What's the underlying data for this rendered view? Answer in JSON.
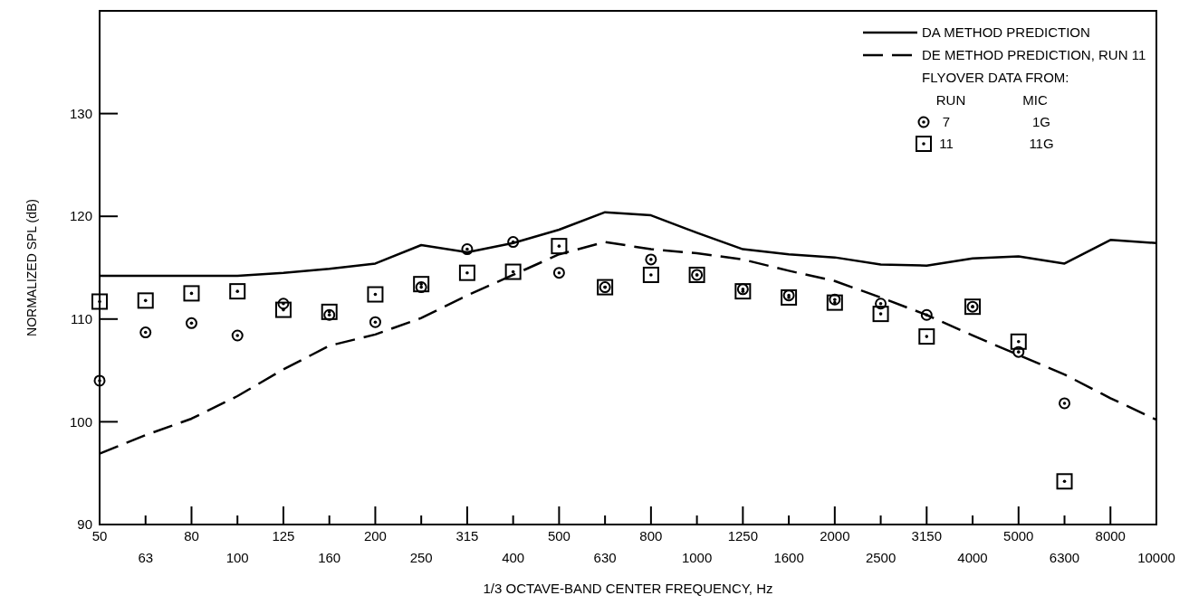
{
  "chart_data": {
    "type": "line",
    "xlabel": "1/3 OCTAVE-BAND CENTER FREQUENCY, Hz",
    "ylabel": "NORMALIZED SPL  (dB)",
    "categories": [
      "50",
      "63",
      "80",
      "100",
      "125",
      "160",
      "200",
      "250",
      "315",
      "400",
      "500",
      "630",
      "800",
      "1000",
      "1250",
      "1600",
      "2000",
      "2500",
      "3150",
      "4000",
      "5000",
      "6300",
      "8000",
      "10000"
    ],
    "ylim": [
      90,
      140
    ],
    "yticks": [
      90,
      100,
      110,
      120,
      130
    ],
    "grid": false,
    "legend": "top right",
    "annotations": [
      "FLYOVER DATA FROM:",
      "RUN",
      "MIC",
      "1G",
      "11G"
    ],
    "series": [
      {
        "name": "DA METHOD PREDICTION",
        "line_style": "solid",
        "color": "#000000",
        "values": [
          114.2,
          114.2,
          114.2,
          114.2,
          114.5,
          114.9,
          115.4,
          117.2,
          116.5,
          117.4,
          118.7,
          120.4,
          120.1,
          118.4,
          116.8,
          116.3,
          116.0,
          115.3,
          115.2,
          115.9,
          116.1,
          115.4,
          117.7,
          117.4
        ]
      },
      {
        "name": "DE METHOD PREDICTION, RUN 11",
        "line_style": "dashed",
        "color": "#000000",
        "values": [
          96.9,
          98.7,
          100.3,
          102.5,
          105.1,
          107.4,
          108.5,
          110.1,
          112.3,
          114.3,
          116.3,
          117.5,
          116.8,
          116.4,
          115.8,
          114.7,
          113.7,
          112.1,
          110.4,
          108.4,
          106.5,
          104.6,
          102.3,
          100.2
        ]
      },
      {
        "name": "7",
        "type": "scatter",
        "marker": "circle",
        "color": "#000000",
        "values": [
          104.0,
          108.7,
          109.6,
          108.4,
          111.5,
          110.4,
          109.7,
          113.1,
          116.8,
          117.5,
          114.5,
          113.1,
          115.8,
          114.3,
          112.9,
          112.3,
          111.9,
          111.5,
          110.4,
          111.2,
          106.8,
          101.8,
          null,
          null
        ]
      },
      {
        "name": "11",
        "type": "scatter",
        "marker": "square",
        "color": "#000000",
        "values": [
          111.7,
          111.8,
          112.5,
          112.7,
          110.9,
          110.7,
          112.4,
          113.4,
          114.5,
          114.6,
          117.1,
          113.1,
          114.3,
          114.3,
          112.7,
          112.1,
          111.6,
          110.5,
          108.3,
          111.2,
          107.8,
          94.2,
          null,
          null
        ]
      }
    ]
  }
}
